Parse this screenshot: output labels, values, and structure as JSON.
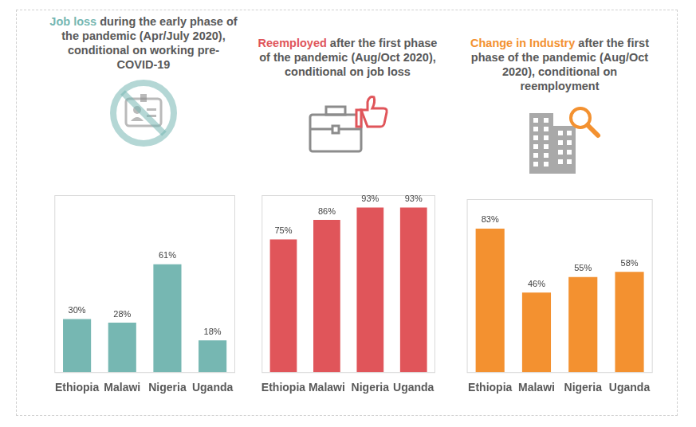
{
  "chart_data": [
    {
      "type": "bar",
      "title": "Job loss during the early phase of the pandemic (Apr/July 2020), conditional on working pre-COVID-19",
      "title_highlight": "Job loss",
      "categories": [
        "Ethiopia",
        "Malawi",
        "Nigeria",
        "Uganda"
      ],
      "values": [
        30,
        28,
        61,
        18
      ],
      "value_labels": [
        "30%",
        "28%",
        "61%",
        "18%"
      ],
      "color": "#76b7b2",
      "ylim": [
        0,
        100
      ],
      "grid": false,
      "data_labels": true,
      "tick_labels": "x"
    },
    {
      "type": "bar",
      "title": "Reemployed after the first phase of the pandemic (Aug/Oct 2020), conditional on job loss",
      "title_highlight": "Reemployed",
      "categories": [
        "Ethiopia",
        "Malawi",
        "Nigeria",
        "Uganda"
      ],
      "values": [
        75,
        86,
        93,
        93
      ],
      "value_labels": [
        "75%",
        "86%",
        "93%",
        "93%"
      ],
      "color": "#e0555a",
      "ylim": [
        0,
        100
      ],
      "grid": false,
      "data_labels": true,
      "tick_labels": "x"
    },
    {
      "type": "bar",
      "title": "Change in Industry after the first phase of the pandemic (Aug/Oct 2020), conditional on reemployment",
      "title_highlight": "Change in Industry",
      "categories": [
        "Ethiopia",
        "Malawi",
        "Nigeria",
        "Uganda"
      ],
      "values": [
        83,
        46,
        55,
        58
      ],
      "value_labels": [
        "83%",
        "46%",
        "55%",
        "58%"
      ],
      "color": "#f39130",
      "ylim": [
        0,
        100
      ],
      "grid": false,
      "data_labels": true,
      "tick_labels": "x"
    }
  ]
}
